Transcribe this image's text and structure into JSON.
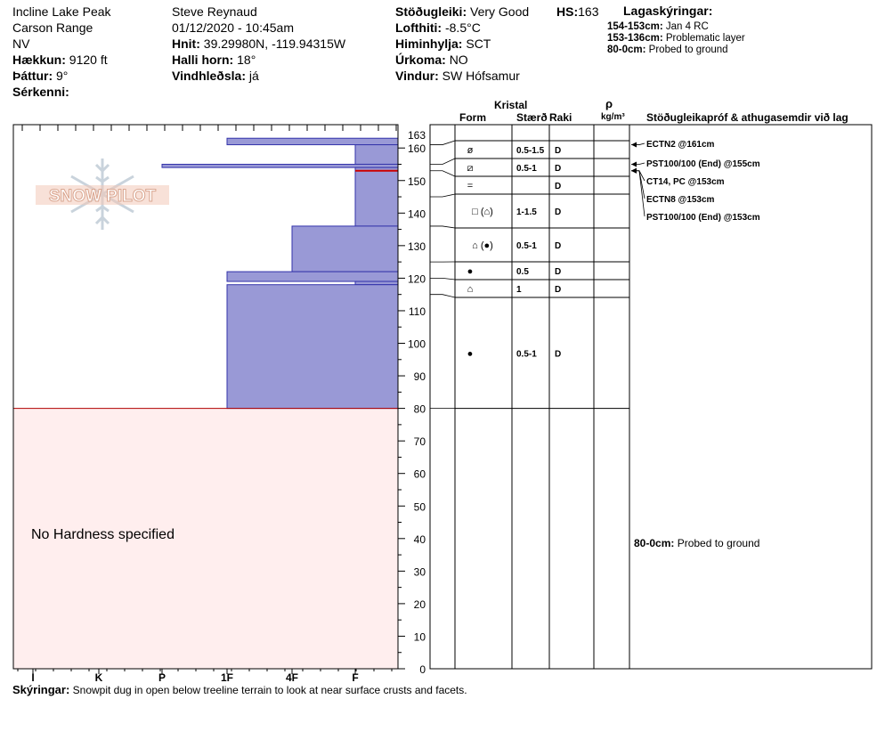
{
  "site": {
    "location": "Incline Lake Peak",
    "range": "Carson Range",
    "state": "NV",
    "elevation_label": "Hækkun:",
    "elevation": "9120 ft",
    "aspect_label": "Þáttur:",
    "aspect": "9°",
    "features_label": "Sérkenni:",
    "features": ""
  },
  "observer": {
    "name": "Steve Reynaud",
    "datetime": "01/12/2020 - 10:45am",
    "coords_label": "Hnit:",
    "coords": "39.29980N, -119.94315W",
    "slope_label": "Halli horn:",
    "slope": "18°",
    "wind_loading_label": "Vindhleðsla:",
    "wind_loading": "já"
  },
  "conditions": {
    "stability_label": "Stöðugleiki:",
    "stability": "Very Good",
    "hs_label": "HS:",
    "hs": "163",
    "air_temp_label": "Lofthiti:",
    "air_temp": "-8.5°C",
    "sky_label": "Himinhylja:",
    "sky": "SCT",
    "precip_label": "Úrkoma:",
    "precip": "NO",
    "wind_label": "Vindur:",
    "wind": "SW Hófsamur"
  },
  "legend": {
    "title": "Lagaskýringar:",
    "items": [
      {
        "range": "154-153cm:",
        "text": "Jan 4 RC"
      },
      {
        "range": "153-136cm:",
        "text": "Problematic layer"
      },
      {
        "range": "80-0cm:",
        "text": "Probed to ground"
      }
    ]
  },
  "columns": {
    "crystal": "Kristal",
    "form": "Form",
    "size": "Stærð",
    "moisture": "Raki",
    "rho": "ρ",
    "density_unit": "kg/m³",
    "tests": "Stöðugleikapróf & athugasemdir við lag"
  },
  "logo_text": "SNOW PILOT",
  "hardness_scale": [
    "I",
    "K",
    "P",
    "1F",
    "4F",
    "F"
  ],
  "no_hardness": "No Hardness specified",
  "comment_label": "Skýringar:",
  "comment": "Snowpit dug in open below treeline terrain to look at near surface crusts and facets.",
  "chart_data": {
    "type": "snow_profile",
    "hs": 163,
    "depth_range": [
      0,
      163
    ],
    "depth_ticks": [
      "0",
      "10",
      "20",
      "30",
      "40",
      "50",
      "60",
      "70",
      "80",
      "90",
      "100",
      "110",
      "120",
      "130",
      "140",
      "150",
      "160",
      "163"
    ],
    "hardness_layers": [
      {
        "top": 163,
        "bottom": 161,
        "hardness": "1F"
      },
      {
        "top": 161,
        "bottom": 155,
        "hardness": "F"
      },
      {
        "top": 155,
        "bottom": 154,
        "hardness": "P"
      },
      {
        "top": 154,
        "bottom": 136,
        "hardness": "F"
      },
      {
        "top": 136,
        "bottom": 122,
        "hardness": "4F"
      },
      {
        "top": 122,
        "bottom": 119,
        "hardness": "1F"
      },
      {
        "top": 119,
        "bottom": 118,
        "hardness": "F"
      },
      {
        "top": 118,
        "bottom": 80,
        "hardness": "1F"
      }
    ],
    "problem_layer_depth": 153,
    "no_hardness_range": [
      0,
      80
    ],
    "crystal_layers": [
      {
        "top": 163,
        "bottom": 161,
        "form": "⌀",
        "size": "",
        "moisture": ""
      },
      {
        "top": 161,
        "bottom": 155,
        "form": "ø",
        "size": "0.5-1.5",
        "moisture": "D"
      },
      {
        "top": 155,
        "bottom": 153,
        "form": "⧄",
        "size": "0.5-1",
        "moisture": "D"
      },
      {
        "top": 153,
        "bottom": 145,
        "form": "=",
        "size": "",
        "moisture": "D"
      },
      {
        "top": 145,
        "bottom": 136,
        "form": "□ (⌂)",
        "size": "1-1.5",
        "moisture": "D"
      },
      {
        "top": 136,
        "bottom": 125,
        "form": "⌂ (●)",
        "size": "0.5-1",
        "moisture": "D"
      },
      {
        "top": 125,
        "bottom": 120,
        "form": "●",
        "size": "0.5",
        "moisture": "D"
      },
      {
        "top": 120,
        "bottom": 115,
        "form": "⌂",
        "size": "1",
        "moisture": "D"
      },
      {
        "top": 115,
        "bottom": 80,
        "form": "●",
        "size": "0.5-1",
        "moisture": "D"
      }
    ],
    "tests": [
      {
        "text": "ECTN2 @161cm",
        "depth": 161
      },
      {
        "text": "PST100/100 (End) @155cm",
        "depth": 155
      },
      {
        "text": "CT14, PC @153cm",
        "depth": 153
      },
      {
        "text": "ECTN8 @153cm",
        "depth": 153
      },
      {
        "text": "PST100/100 (End) @153cm",
        "depth": 153
      }
    ],
    "probe_note": {
      "range": "80-0cm:",
      "text": "Probed to ground"
    }
  }
}
